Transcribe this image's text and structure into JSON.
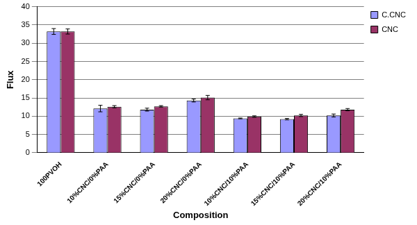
{
  "chart_data": {
    "type": "bar",
    "x_label": "Composition",
    "y_label": "Flux",
    "categories": [
      "100PVOH",
      "10%CNC/0%PAA",
      "15%CNC/0%PAA",
      "20%CNC/0%PAA",
      "10%CNC/10%PAA",
      "15%CNC/10%PAA",
      "20%CNC/10%PAA"
    ],
    "series": [
      {
        "name": "C.CNC",
        "color": "#9999ff",
        "values": [
          33.2,
          12.1,
          11.8,
          14.3,
          9.4,
          9.2,
          10.2
        ],
        "errors": [
          0.8,
          0.9,
          0.4,
          0.4,
          0.1,
          0.2,
          0.4
        ]
      },
      {
        "name": "CNC",
        "color": "#993366",
        "values": [
          33.2,
          12.6,
          12.7,
          15.1,
          9.9,
          10.2,
          11.8
        ],
        "errors": [
          0.7,
          0.3,
          0.2,
          0.6,
          0.2,
          0.3,
          0.3
        ]
      }
    ],
    "ylim": [
      0,
      40
    ],
    "yticks": [
      0,
      5,
      10,
      15,
      20,
      25,
      30,
      35,
      40
    ],
    "grid": true,
    "legend": "right"
  }
}
